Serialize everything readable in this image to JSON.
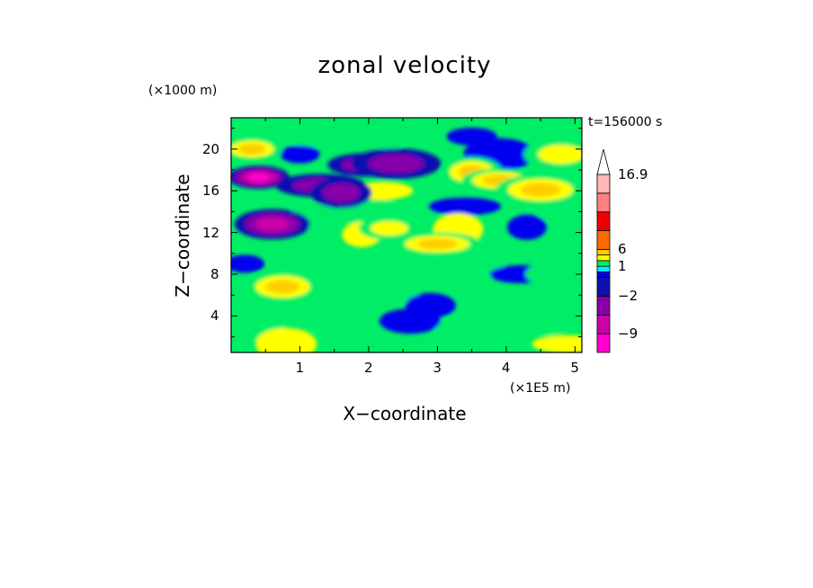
{
  "chart_data": {
    "type": "heatmap",
    "title": "zonal velocity",
    "xlabel": "X−coordinate",
    "ylabel": "Z−coordinate",
    "x_unit": "(×1E5 m)",
    "y_unit": "(×1000 m)",
    "time_label": "t=156000 s",
    "xlim": [
      0,
      5.1
    ],
    "ylim": [
      0.5,
      23.0
    ],
    "x_ticks": [
      "1",
      "2",
      "3",
      "4",
      "5"
    ],
    "x_tick_values": [
      1,
      2,
      3,
      4,
      5
    ],
    "y_ticks": [
      "4",
      "8",
      "12",
      "16",
      "20"
    ],
    "y_tick_values": [
      4,
      8,
      12,
      16,
      20
    ],
    "colorbar": {
      "labels": [
        "16.9",
        "6",
        "1",
        "−2",
        "−9"
      ],
      "label_values": [
        16.9,
        6,
        1,
        -2,
        -9
      ],
      "levels": [
        -12,
        -9,
        -6,
        -2,
        -1,
        0,
        1,
        2,
        3,
        6,
        9,
        12,
        16.9
      ],
      "colors": [
        "#ff00cc",
        "#cc00aa",
        "#8800aa",
        "#1010b0",
        "#0000ee",
        "#00eeff",
        "#00ee66",
        "#ffff00",
        "#ffcc00",
        "#ff6a00",
        "#ee0000",
        "#ff8080",
        "#ffb8b8"
      ],
      "extend": "max"
    },
    "field_description": "u(x,z) zonal velocity; background weak (−1 to 3), strong negative jet near z=17 around x=0.3–1.5, positive maxima near z=17 x=3.5–4.5 and z=11 x=3.0",
    "features": [
      {
        "x": 0.4,
        "z": 17.3,
        "value": -11
      },
      {
        "x": 0.6,
        "z": 12.8,
        "value": -9
      },
      {
        "x": 1.3,
        "z": 16.5,
        "value": -7
      },
      {
        "x": 1.6,
        "z": 15.8,
        "value": -5
      },
      {
        "x": 1.95,
        "z": 18.5,
        "value": -6
      },
      {
        "x": 2.4,
        "z": 18.6,
        "value": -4
      },
      {
        "x": 0.3,
        "z": 20.0,
        "value": 5
      },
      {
        "x": 0.75,
        "z": 6.8,
        "value": 6
      },
      {
        "x": 3.0,
        "z": 10.9,
        "value": 7
      },
      {
        "x": 3.5,
        "z": 17.8,
        "value": 5
      },
      {
        "x": 3.9,
        "z": 17.0,
        "value": 6
      },
      {
        "x": 4.5,
        "z": 16.1,
        "value": 5
      },
      {
        "x": 2.3,
        "z": 12.4,
        "value": 3
      },
      {
        "x": 4.8,
        "z": 19.5,
        "value": 3
      }
    ]
  }
}
